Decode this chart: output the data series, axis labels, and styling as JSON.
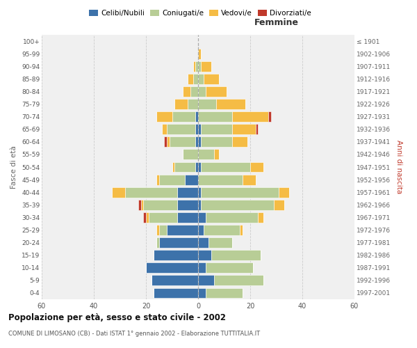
{
  "age_groups": [
    "0-4",
    "5-9",
    "10-14",
    "15-19",
    "20-24",
    "25-29",
    "30-34",
    "35-39",
    "40-44",
    "45-49",
    "50-54",
    "55-59",
    "60-64",
    "65-69",
    "70-74",
    "75-79",
    "80-84",
    "85-89",
    "90-94",
    "95-99",
    "100+"
  ],
  "birth_years": [
    "1997-2001",
    "1992-1996",
    "1987-1991",
    "1982-1986",
    "1977-1981",
    "1972-1976",
    "1967-1971",
    "1962-1966",
    "1957-1961",
    "1952-1956",
    "1947-1951",
    "1942-1946",
    "1937-1941",
    "1932-1936",
    "1927-1931",
    "1922-1926",
    "1917-1921",
    "1912-1916",
    "1907-1911",
    "1902-1906",
    "≤ 1901"
  ],
  "males": {
    "celibi": [
      17,
      18,
      20,
      17,
      15,
      12,
      8,
      8,
      8,
      5,
      1,
      0,
      1,
      1,
      1,
      0,
      0,
      0,
      0,
      0,
      0
    ],
    "coniugati": [
      0,
      0,
      0,
      0,
      1,
      3,
      11,
      13,
      20,
      10,
      8,
      6,
      10,
      11,
      9,
      4,
      3,
      2,
      1,
      0,
      0
    ],
    "vedovi": [
      0,
      0,
      0,
      0,
      0,
      1,
      1,
      1,
      5,
      1,
      1,
      0,
      1,
      2,
      6,
      5,
      3,
      2,
      1,
      0,
      0
    ],
    "divorziati": [
      0,
      0,
      0,
      0,
      0,
      0,
      1,
      1,
      0,
      0,
      0,
      0,
      1,
      0,
      0,
      0,
      0,
      0,
      0,
      0,
      0
    ]
  },
  "females": {
    "nubili": [
      3,
      6,
      3,
      5,
      4,
      2,
      3,
      1,
      1,
      0,
      1,
      0,
      1,
      1,
      0,
      0,
      0,
      0,
      0,
      0,
      0
    ],
    "coniugate": [
      14,
      19,
      18,
      19,
      9,
      14,
      20,
      28,
      30,
      17,
      19,
      6,
      12,
      12,
      13,
      7,
      3,
      2,
      1,
      0,
      0
    ],
    "vedove": [
      0,
      0,
      0,
      0,
      0,
      1,
      2,
      4,
      4,
      5,
      5,
      2,
      6,
      9,
      14,
      11,
      8,
      6,
      4,
      1,
      0
    ],
    "divorziate": [
      0,
      0,
      0,
      0,
      0,
      0,
      0,
      0,
      0,
      0,
      0,
      0,
      0,
      1,
      1,
      0,
      0,
      0,
      0,
      0,
      0
    ]
  },
  "colors": {
    "celibi_nubili": "#3d72aa",
    "coniugati": "#b8cd96",
    "vedovi": "#f5bc45",
    "divorziati": "#c0392b"
  },
  "xlim": 60,
  "title": "Popolazione per età, sesso e stato civile - 2002",
  "subtitle": "COMUNE DI LIMOSANO (CB) - Dati ISTAT 1° gennaio 2002 - Elaborazione TUTTITALIA.IT",
  "xlabel_right": "Femmine",
  "ylabel_left": "Fasce di età",
  "ylabel_right": "Anni di nascita",
  "legend_labels": [
    "Celibi/Nubili",
    "Coniugati/e",
    "Vedovi/e",
    "Divorziati/e"
  ],
  "background_color": "#ffffff",
  "plot_bg": "#f0f0f0",
  "bar_height": 0.82
}
